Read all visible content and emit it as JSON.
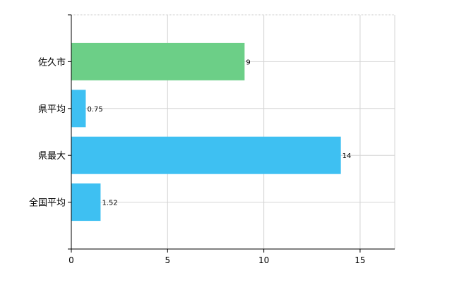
{
  "chart_data": {
    "type": "bar",
    "orientation": "horizontal",
    "title": "",
    "xlabel": "",
    "ylabel": "",
    "categories": [
      "佐久市",
      "県平均",
      "県最大",
      "全国平均"
    ],
    "values": [
      9,
      0.75,
      14,
      1.52
    ],
    "value_labels": [
      "9",
      "0.75",
      "14",
      "1.52"
    ],
    "bar_colors": [
      "#6ccf87",
      "#3ec0f2",
      "#3ec0f2",
      "#3ec0f2"
    ],
    "xlim": [
      0,
      16.8
    ],
    "xticks": [
      0,
      5,
      10,
      15
    ],
    "xtick_labels": [
      "0",
      "5",
      "10",
      "15"
    ],
    "grid": true,
    "legend": "none"
  }
}
